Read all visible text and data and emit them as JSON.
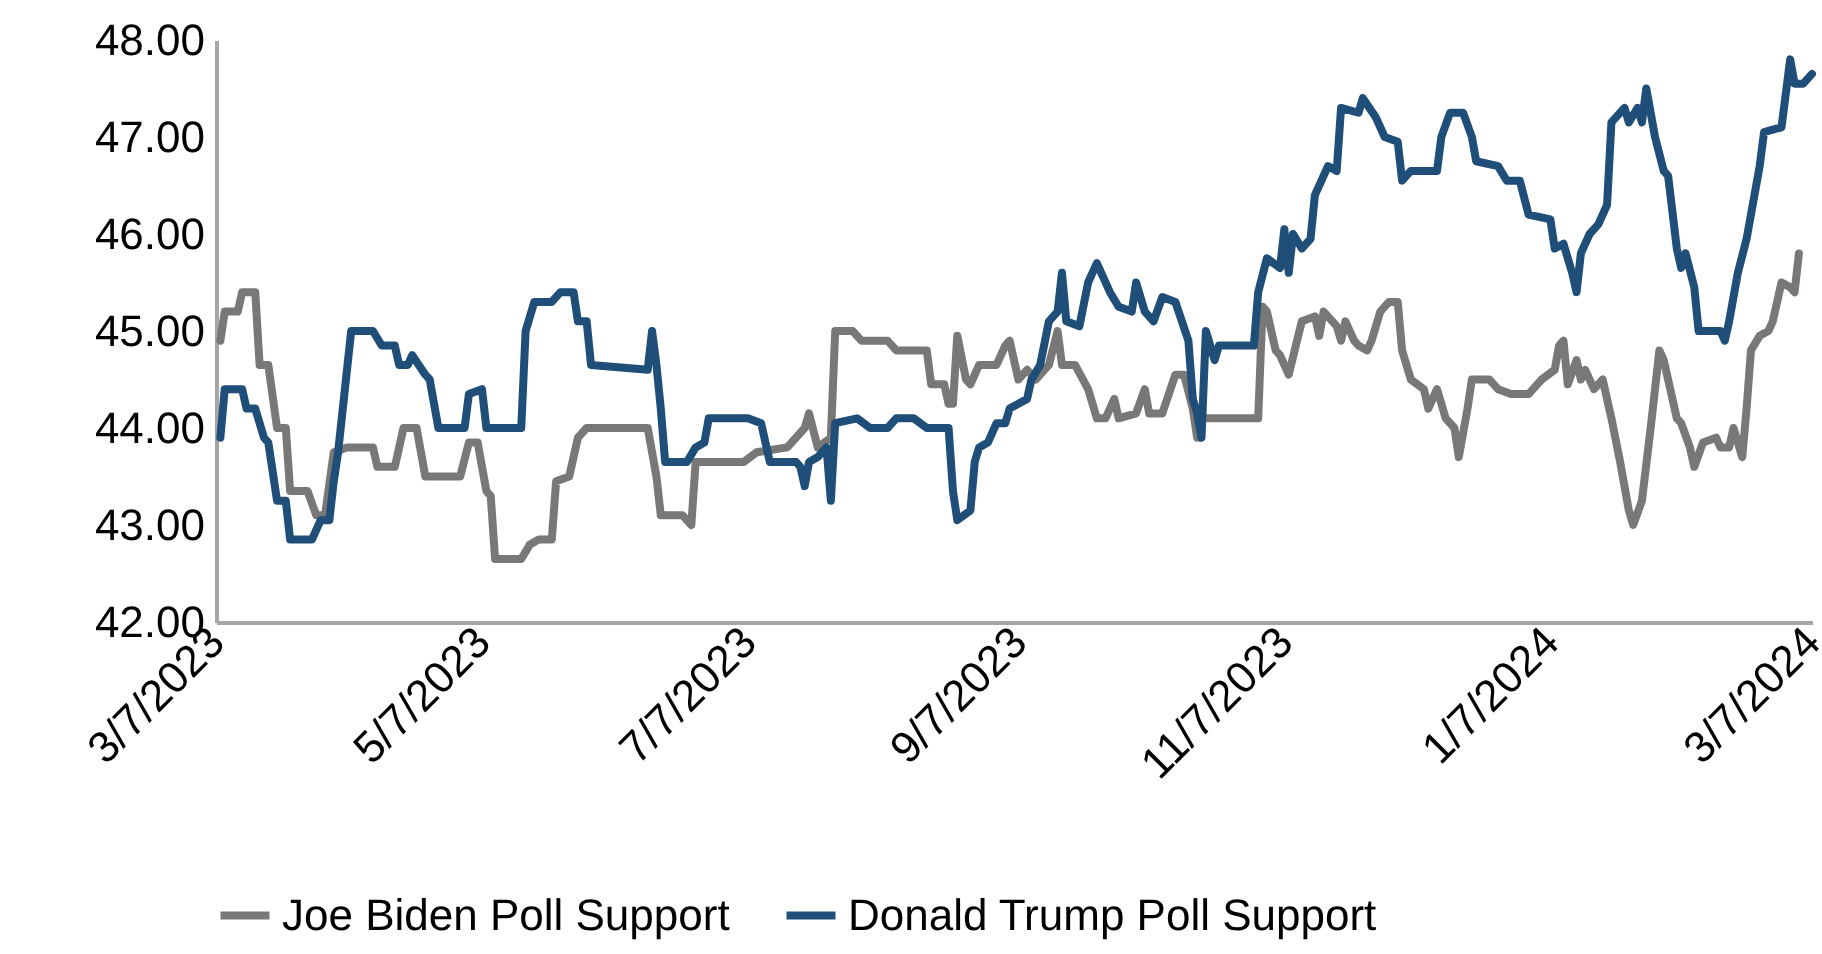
{
  "chart_data": {
    "type": "line",
    "xlim": [
      "2023-03-07",
      "2024-03-07"
    ],
    "ylim": [
      42,
      48
    ],
    "xticks": [
      {
        "value": "2023-03-07",
        "label": "3/7/2023"
      },
      {
        "value": "2023-05-07",
        "label": "5/7/2023"
      },
      {
        "value": "2023-07-07",
        "label": "7/7/2023"
      },
      {
        "value": "2023-09-07",
        "label": "9/7/2023"
      },
      {
        "value": "2023-11-07",
        "label": "11/7/2023"
      },
      {
        "value": "2024-01-07",
        "label": "1/7/2024"
      },
      {
        "value": "2024-03-07",
        "label": "3/7/2024"
      }
    ],
    "yticks": [
      {
        "value": 42,
        "label": "42.00"
      },
      {
        "value": 43,
        "label": "43.00"
      },
      {
        "value": 44,
        "label": "44.00"
      },
      {
        "value": 45,
        "label": "45.00"
      },
      {
        "value": 46,
        "label": "46.00"
      },
      {
        "value": 47,
        "label": "47.00"
      },
      {
        "value": 48,
        "label": "48.00"
      }
    ],
    "grid": false,
    "legend": "bottom",
    "marker": "none",
    "line_style": "solid",
    "series": [
      {
        "name": "Joe Biden Poll Support",
        "color": "#7a7777",
        "x": [
          "2023-03-08",
          "2023-03-09",
          "2023-03-12",
          "2023-03-13",
          "2023-03-16",
          "2023-03-17",
          "2023-03-19",
          "2023-03-21",
          "2023-03-23",
          "2023-03-24",
          "2023-03-28",
          "2023-03-30",
          "2023-04-01",
          "2023-04-03",
          "2023-04-06",
          "2023-04-12",
          "2023-04-13",
          "2023-04-17",
          "2023-04-19",
          "2023-04-22",
          "2023-04-24",
          "2023-05-02",
          "2023-05-04",
          "2023-05-06",
          "2023-05-08",
          "2023-05-09",
          "2023-05-10",
          "2023-05-16",
          "2023-05-18",
          "2023-05-20",
          "2023-05-23",
          "2023-05-24",
          "2023-05-27",
          "2023-05-29",
          "2023-05-31",
          "2023-06-14",
          "2023-06-16",
          "2023-06-17",
          "2023-06-22",
          "2023-06-24",
          "2023-06-25",
          "2023-07-06",
          "2023-07-09",
          "2023-07-16",
          "2023-07-20",
          "2023-07-21",
          "2023-07-23",
          "2023-07-26",
          "2023-07-27",
          "2023-07-31",
          "2023-08-02",
          "2023-08-08",
          "2023-08-10",
          "2023-08-17",
          "2023-08-18",
          "2023-08-21",
          "2023-08-22",
          "2023-08-23",
          "2023-08-24",
          "2023-08-26",
          "2023-08-27",
          "2023-08-29",
          "2023-09-02",
          "2023-09-04",
          "2023-09-05",
          "2023-09-07",
          "2023-09-09",
          "2023-09-11",
          "2023-09-14",
          "2023-09-16",
          "2023-09-17",
          "2023-09-20",
          "2023-09-23",
          "2023-09-25",
          "2023-09-27",
          "2023-09-29",
          "2023-09-30",
          "2023-10-04",
          "2023-10-06",
          "2023-10-07",
          "2023-10-10",
          "2023-10-13",
          "2023-10-15",
          "2023-10-17",
          "2023-10-18",
          "2023-10-19",
          "2023-11-01",
          "2023-11-02",
          "2023-11-03",
          "2023-11-05",
          "2023-11-06",
          "2023-11-08",
          "2023-11-11",
          "2023-11-14",
          "2023-11-15",
          "2023-11-16",
          "2023-11-19",
          "2023-11-20",
          "2023-11-21",
          "2023-11-23",
          "2023-11-24",
          "2023-11-26",
          "2023-11-27",
          "2023-11-29",
          "2023-12-01",
          "2023-12-03",
          "2023-12-04",
          "2023-12-06",
          "2023-12-09",
          "2023-12-10",
          "2023-12-12",
          "2023-12-14",
          "2023-12-16",
          "2023-12-17",
          "2023-12-19",
          "2023-12-20",
          "2023-12-24",
          "2023-12-26",
          "2023-12-29",
          "2024-01-02",
          "2024-01-04",
          "2024-01-05",
          "2024-01-08",
          "2024-01-09",
          "2024-01-10",
          "2024-01-11",
          "2024-01-13",
          "2024-01-14",
          "2024-01-15",
          "2024-01-17",
          "2024-01-19",
          "2024-01-21",
          "2024-01-23",
          "2024-01-25",
          "2024-01-26",
          "2024-01-28",
          "2024-01-30",
          "2024-02-01",
          "2024-02-02",
          "2024-02-05",
          "2024-02-06",
          "2024-02-08",
          "2024-02-09",
          "2024-02-11",
          "2024-02-14",
          "2024-02-15",
          "2024-02-17",
          "2024-02-18",
          "2024-02-20",
          "2024-02-21",
          "2024-02-22",
          "2024-02-24",
          "2024-02-26",
          "2024-02-27",
          "2024-02-29",
          "2024-03-02",
          "2024-03-03",
          "2024-03-04"
        ],
        "values": [
          44.9,
          45.2,
          45.2,
          45.4,
          45.4,
          44.65,
          44.65,
          44.0,
          44.0,
          43.35,
          43.35,
          43.1,
          43.1,
          43.75,
          43.8,
          43.8,
          43.6,
          43.6,
          44.0,
          44.0,
          43.5,
          43.5,
          43.85,
          43.85,
          43.35,
          43.3,
          42.65,
          42.65,
          42.8,
          42.85,
          42.85,
          43.45,
          43.5,
          43.9,
          44.0,
          44.0,
          43.5,
          43.1,
          43.1,
          43.0,
          43.65,
          43.65,
          43.75,
          43.8,
          44.0,
          44.15,
          43.8,
          43.9,
          45.0,
          45.0,
          44.9,
          44.9,
          44.8,
          44.8,
          44.45,
          44.45,
          44.25,
          44.25,
          44.95,
          44.5,
          44.45,
          44.65,
          44.65,
          44.85,
          44.9,
          44.5,
          44.6,
          44.5,
          44.65,
          45.0,
          44.65,
          44.65,
          44.4,
          44.1,
          44.1,
          44.3,
          44.1,
          44.15,
          44.4,
          44.15,
          44.15,
          44.55,
          44.55,
          44.2,
          43.9,
          44.1,
          44.1,
          45.25,
          45.2,
          44.8,
          44.75,
          44.55,
          45.1,
          45.15,
          44.95,
          45.2,
          45.05,
          44.9,
          45.1,
          44.9,
          44.85,
          44.8,
          44.9,
          45.2,
          45.3,
          45.3,
          44.8,
          44.5,
          44.4,
          44.2,
          44.4,
          44.1,
          44.0,
          43.7,
          44.2,
          44.5,
          44.5,
          44.4,
          44.35,
          44.35,
          44.45,
          44.5,
          44.6,
          44.85,
          44.9,
          44.45,
          44.7,
          44.5,
          44.6,
          44.4,
          44.5,
          44.1,
          43.65,
          43.15,
          43.0,
          43.25,
          44.0,
          44.8,
          44.7,
          44.1,
          44.05,
          43.8,
          43.6,
          43.85,
          43.9,
          43.8,
          43.8,
          44.0,
          43.7,
          44.2,
          44.8,
          44.95,
          45.0,
          45.1,
          45.5,
          45.45,
          45.4,
          45.8
        ]
      },
      {
        "name": "Donald Trump Poll Support",
        "color": "#1f4e79",
        "x": [
          "2023-03-08",
          "2023-03-09",
          "2023-03-13",
          "2023-03-14",
          "2023-03-16",
          "2023-03-18",
          "2023-03-19",
          "2023-03-21",
          "2023-03-23",
          "2023-03-24",
          "2023-03-29",
          "2023-03-31",
          "2023-04-02",
          "2023-04-03",
          "2023-04-04",
          "2023-04-07",
          "2023-04-12",
          "2023-04-14",
          "2023-04-17",
          "2023-04-18",
          "2023-04-20",
          "2023-04-21",
          "2023-04-24",
          "2023-04-25",
          "2023-04-27",
          "2023-05-03",
          "2023-05-04",
          "2023-05-07",
          "2023-05-08",
          "2023-05-16",
          "2023-05-17",
          "2023-05-19",
          "2023-05-23",
          "2023-05-25",
          "2023-05-28",
          "2023-05-29",
          "2023-05-31",
          "2023-06-01",
          "2023-06-14",
          "2023-06-15",
          "2023-06-16",
          "2023-06-17",
          "2023-06-18",
          "2023-06-23",
          "2023-06-25",
          "2023-06-27",
          "2023-06-28",
          "2023-07-07",
          "2023-07-10",
          "2023-07-12",
          "2023-07-18",
          "2023-07-19",
          "2023-07-20",
          "2023-07-21",
          "2023-07-23",
          "2023-07-25",
          "2023-07-26",
          "2023-07-27",
          "2023-08-01",
          "2023-08-04",
          "2023-08-08",
          "2023-08-10",
          "2023-08-14",
          "2023-08-17",
          "2023-08-22",
          "2023-08-23",
          "2023-08-24",
          "2023-08-27",
          "2023-08-28",
          "2023-08-29",
          "2023-08-31",
          "2023-09-02",
          "2023-09-04",
          "2023-09-05",
          "2023-09-07",
          "2023-09-09",
          "2023-09-10",
          "2023-09-12",
          "2023-09-14",
          "2023-09-16",
          "2023-09-17",
          "2023-09-18",
          "2023-09-21",
          "2023-09-23",
          "2023-09-25",
          "2023-09-28",
          "2023-09-30",
          "2023-10-03",
          "2023-10-04",
          "2023-10-06",
          "2023-10-08",
          "2023-10-10",
          "2023-10-13",
          "2023-10-16",
          "2023-10-17",
          "2023-10-18",
          "2023-10-19",
          "2023-10-20",
          "2023-10-22",
          "2023-10-23",
          "2023-10-31",
          "2023-11-01",
          "2023-11-03",
          "2023-11-06",
          "2023-11-07",
          "2023-11-08",
          "2023-11-09",
          "2023-11-11",
          "2023-11-13",
          "2023-11-14",
          "2023-11-17",
          "2023-11-19",
          "2023-11-20",
          "2023-11-24",
          "2023-11-25",
          "2023-11-28",
          "2023-11-30",
          "2023-12-03",
          "2023-12-04",
          "2023-12-06",
          "2023-12-12",
          "2023-12-13",
          "2023-12-15",
          "2023-12-18",
          "2023-12-20",
          "2023-12-21",
          "2023-12-26",
          "2023-12-28",
          "2023-12-31",
          "2024-01-02",
          "2024-01-07",
          "2024-01-08",
          "2024-01-10",
          "2024-01-12",
          "2024-01-13",
          "2024-01-14",
          "2024-01-16",
          "2024-01-18",
          "2024-01-20",
          "2024-01-21",
          "2024-01-24",
          "2024-01-25",
          "2024-01-27",
          "2024-01-28",
          "2024-01-29",
          "2024-01-31",
          "2024-02-02",
          "2024-02-03",
          "2024-02-05",
          "2024-02-06",
          "2024-02-07",
          "2024-02-09",
          "2024-02-10",
          "2024-02-15",
          "2024-02-16",
          "2024-02-17",
          "2024-02-19",
          "2024-02-21",
          "2024-02-24",
          "2024-02-25",
          "2024-02-29",
          "2024-03-02",
          "2024-03-03",
          "2024-03-05",
          "2024-03-07"
        ],
        "values": [
          43.9,
          44.4,
          44.4,
          44.2,
          44.2,
          43.9,
          43.85,
          43.25,
          43.25,
          42.85,
          42.85,
          43.05,
          43.05,
          43.45,
          43.75,
          45.0,
          45.0,
          44.85,
          44.85,
          44.65,
          44.65,
          44.75,
          44.55,
          44.5,
          44.0,
          44.0,
          44.35,
          44.4,
          44.0,
          44.0,
          45.0,
          45.3,
          45.3,
          45.4,
          45.4,
          45.1,
          45.1,
          44.65,
          44.6,
          45.0,
          44.65,
          44.2,
          43.65,
          43.65,
          43.8,
          43.85,
          44.1,
          44.1,
          44.05,
          43.65,
          43.65,
          43.6,
          43.4,
          43.65,
          43.7,
          43.8,
          43.25,
          44.05,
          44.1,
          44.0,
          44.0,
          44.1,
          44.1,
          44.0,
          44.0,
          43.35,
          43.05,
          43.15,
          43.65,
          43.8,
          43.85,
          44.05,
          44.05,
          44.2,
          44.25,
          44.3,
          44.5,
          44.65,
          45.1,
          45.2,
          45.6,
          45.1,
          45.05,
          45.5,
          45.7,
          45.4,
          45.25,
          45.2,
          45.5,
          45.2,
          45.1,
          45.35,
          45.3,
          44.9,
          44.3,
          44.15,
          43.9,
          45.0,
          44.7,
          44.85,
          44.85,
          45.4,
          45.75,
          45.65,
          46.05,
          45.6,
          46.0,
          45.85,
          45.95,
          46.4,
          46.7,
          46.65,
          47.3,
          47.25,
          47.4,
          47.2,
          47.0,
          46.95,
          46.55,
          46.65,
          46.65,
          47.0,
          47.25,
          47.25,
          47.0,
          46.75,
          46.7,
          46.55,
          46.55,
          46.2,
          46.15,
          45.85,
          45.9,
          45.6,
          45.4,
          45.8,
          46.0,
          46.1,
          46.3,
          47.15,
          47.3,
          47.15,
          47.3,
          47.15,
          47.5,
          47.0,
          46.65,
          46.6,
          45.85,
          45.65,
          45.8,
          45.45,
          45.0,
          45.0,
          44.9,
          45.1,
          45.6,
          45.95,
          46.7,
          47.05,
          47.1,
          47.8,
          47.55,
          47.55,
          47.65
        ]
      }
    ]
  }
}
